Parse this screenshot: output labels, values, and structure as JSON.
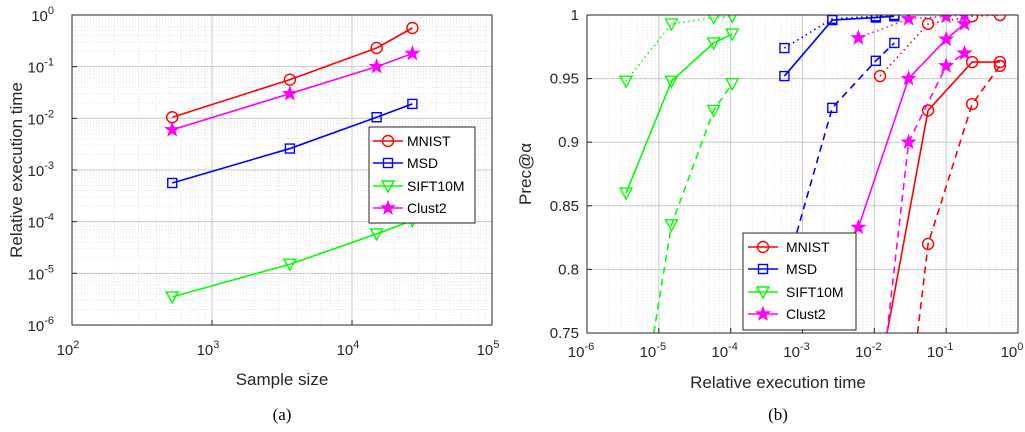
{
  "chart_data": [
    {
      "type": "line",
      "caption": "(a)",
      "xlabel": "Sample size",
      "ylabel": "Relative execution time",
      "xscale": "log",
      "yscale": "log",
      "xlim": [
        100,
        100000
      ],
      "ylim": [
        1e-06,
        1
      ],
      "x_tick_labels": [
        {
          "base": "10",
          "exp": "2"
        },
        {
          "base": "10",
          "exp": "3"
        },
        {
          "base": "10",
          "exp": "4"
        },
        {
          "base": "10",
          "exp": "5"
        }
      ],
      "y_tick_labels": [
        {
          "base": "10",
          "exp": "-6"
        },
        {
          "base": "10",
          "exp": "-5"
        },
        {
          "base": "10",
          "exp": "-4"
        },
        {
          "base": "10",
          "exp": "-3"
        },
        {
          "base": "10",
          "exp": "-2"
        },
        {
          "base": "10",
          "exp": "-1"
        },
        {
          "base": "10",
          "exp": "0"
        }
      ],
      "grid": true,
      "legend_position": "center-right",
      "series": [
        {
          "name": "MNIST",
          "color": "#ff0000",
          "marker": "circle",
          "style": "solid",
          "x": [
            520,
            3600,
            15000,
            27000
          ],
          "y": [
            0.0105,
            0.056,
            0.23,
            0.56
          ]
        },
        {
          "name": "MSD",
          "color": "#0000ff",
          "marker": "square",
          "style": "solid",
          "x": [
            520,
            3600,
            15000,
            27000
          ],
          "y": [
            0.00056,
            0.0026,
            0.0105,
            0.019
          ]
        },
        {
          "name": "SIFT10M",
          "color": "#00ff00",
          "marker": "triangle-down",
          "style": "solid",
          "x": [
            520,
            3600,
            15000,
            27000
          ],
          "y": [
            3.5e-06,
            1.5e-05,
            5.8e-05,
            0.000105
          ]
        },
        {
          "name": "Clust2",
          "color": "#ff00ff",
          "marker": "star",
          "style": "solid",
          "x": [
            520,
            3600,
            15000,
            27000
          ],
          "y": [
            0.006,
            0.03,
            0.1,
            0.18
          ]
        }
      ]
    },
    {
      "type": "line",
      "caption": "(b)",
      "xlabel": "Relative execution time",
      "ylabel": "Prec@α",
      "xscale": "log",
      "yscale": "linear",
      "xlim": [
        1e-06,
        1
      ],
      "ylim": [
        0.75,
        1
      ],
      "x_tick_labels": [
        {
          "base": "10",
          "exp": "-6"
        },
        {
          "base": "10",
          "exp": "-5"
        },
        {
          "base": "10",
          "exp": "-4"
        },
        {
          "base": "10",
          "exp": "-3"
        },
        {
          "base": "10",
          "exp": "-2"
        },
        {
          "base": "10",
          "exp": "-1"
        },
        {
          "base": "10",
          "exp": "0"
        }
      ],
      "y_ticks": [
        0.75,
        0.8,
        0.85,
        0.9,
        0.95,
        1
      ],
      "y_tick_labels": [
        "0.75",
        "0.8",
        "0.85",
        "0.9",
        "0.95",
        "1"
      ],
      "grid": true,
      "legend_position": "bottom-center",
      "legend": [
        {
          "name": "MNIST",
          "color": "#ff0000",
          "marker": "circle"
        },
        {
          "name": "MSD",
          "color": "#0000ff",
          "marker": "square"
        },
        {
          "name": "SIFT10M",
          "color": "#00ff00",
          "marker": "triangle-down"
        },
        {
          "name": "Clust2",
          "color": "#ff00ff",
          "marker": "star"
        }
      ],
      "series": [
        {
          "dataset": "MNIST",
          "color": "#ff0000",
          "marker": "circle",
          "style": "dotted",
          "x": [
            0.012,
            0.056,
            0.23,
            0.56
          ],
          "y": [
            0.952,
            0.993,
            0.999,
            1.0
          ]
        },
        {
          "dataset": "MNIST",
          "color": "#ff0000",
          "marker": "circle",
          "style": "solid",
          "x": [
            0.012,
            0.056,
            0.23,
            0.56
          ],
          "y": [
            0.72,
            0.925,
            0.963,
            0.963
          ]
        },
        {
          "dataset": "MNIST",
          "color": "#ff0000",
          "marker": "circle",
          "style": "dashed",
          "x": [
            0.04,
            0.056,
            0.23,
            0.56
          ],
          "y": [
            0.75,
            0.82,
            0.93,
            0.96
          ]
        },
        {
          "dataset": "MSD",
          "color": "#0000ff",
          "marker": "square",
          "style": "dotted",
          "x": [
            0.00056,
            0.0026,
            0.0105,
            0.019
          ],
          "y": [
            0.974,
            0.997,
            0.999,
            1.0
          ]
        },
        {
          "dataset": "MSD",
          "color": "#0000ff",
          "marker": "square",
          "style": "solid",
          "x": [
            0.00056,
            0.0026,
            0.0105,
            0.019
          ],
          "y": [
            0.952,
            0.996,
            0.998,
            0.999
          ]
        },
        {
          "dataset": "MSD",
          "color": "#0000ff",
          "marker": "square",
          "style": "dashed",
          "x": [
            0.00075,
            0.0026,
            0.0105,
            0.019
          ],
          "y": [
            0.82,
            0.927,
            0.964,
            0.978
          ]
        },
        {
          "dataset": "SIFT10M",
          "color": "#00ff00",
          "marker": "triangle-down",
          "style": "dotted",
          "x": [
            3.5e-06,
            1.5e-05,
            5.8e-05,
            0.000105
          ],
          "y": [
            0.948,
            0.993,
            0.998,
            0.999
          ]
        },
        {
          "dataset": "SIFT10M",
          "color": "#00ff00",
          "marker": "triangle-down",
          "style": "solid",
          "x": [
            3.5e-06,
            1.5e-05,
            5.8e-05,
            0.000105
          ],
          "y": [
            0.86,
            0.948,
            0.978,
            0.985
          ]
        },
        {
          "dataset": "SIFT10M",
          "color": "#00ff00",
          "marker": "triangle-down",
          "style": "dashed",
          "x": [
            8.5e-06,
            1.5e-05,
            5.8e-05,
            0.000105
          ],
          "y": [
            0.75,
            0.835,
            0.925,
            0.946
          ]
        },
        {
          "dataset": "Clust2",
          "color": "#ff00ff",
          "marker": "star",
          "style": "dotted",
          "x": [
            0.006,
            0.03,
            0.1,
            0.18
          ],
          "y": [
            0.982,
            0.997,
            0.999,
            1.0
          ]
        },
        {
          "dataset": "Clust2",
          "color": "#ff00ff",
          "marker": "star",
          "style": "solid",
          "x": [
            0.006,
            0.03,
            0.1,
            0.18
          ],
          "y": [
            0.833,
            0.95,
            0.981,
            0.993
          ]
        },
        {
          "dataset": "Clust2",
          "color": "#ff00ff",
          "marker": "star",
          "style": "dashed",
          "x": [
            0.015,
            0.03,
            0.1,
            0.18
          ],
          "y": [
            0.75,
            0.9,
            0.96,
            0.97
          ]
        }
      ]
    }
  ]
}
